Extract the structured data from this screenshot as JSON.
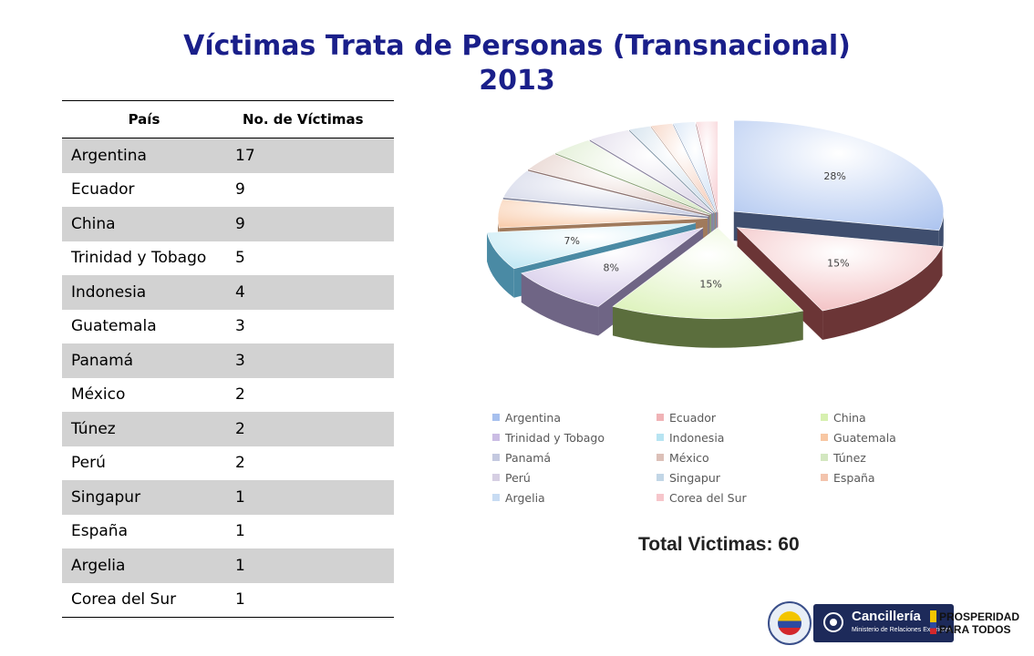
{
  "title": {
    "line1": "Víctimas Trata de Personas (Transnacional)",
    "line2": "2013"
  },
  "table": {
    "headers": [
      "País",
      "No. de Víctimas"
    ],
    "rows": [
      [
        "Argentina",
        "17"
      ],
      [
        "Ecuador",
        "9"
      ],
      [
        "China",
        "9"
      ],
      [
        "Trinidad y Tobago",
        "5"
      ],
      [
        "Indonesia",
        "4"
      ],
      [
        "Guatemala",
        "3"
      ],
      [
        "Panamá",
        "3"
      ],
      [
        "México",
        "2"
      ],
      [
        "Túnez",
        "2"
      ],
      [
        "Perú",
        "2"
      ],
      [
        "Singapur",
        "1"
      ],
      [
        "España",
        "1"
      ],
      [
        "Argelia",
        "1"
      ],
      [
        "Corea del Sur",
        "1"
      ]
    ]
  },
  "chart_data": {
    "type": "pie",
    "style": "3d-exploded",
    "legend_position": "bottom",
    "categories": [
      "Argentina",
      "Ecuador",
      "China",
      "Trinidad y Tobago",
      "Indonesia",
      "Guatemala",
      "Panamá",
      "México",
      "Túnez",
      "Perú",
      "Singapur",
      "España",
      "Argelia",
      "Corea del Sur"
    ],
    "values": [
      17,
      9,
      9,
      5,
      4,
      3,
      3,
      2,
      2,
      2,
      1,
      1,
      1,
      1
    ],
    "data_labels": [
      "28%",
      "15%",
      "15%",
      "8%",
      "7%",
      "",
      "",
      "",
      "",
      "",
      "",
      "",
      "",
      ""
    ],
    "colors": [
      "#a7c0ee",
      "#f0b3b6",
      "#d7f0b0",
      "#cbbde4",
      "#b7e4f2",
      "#f8c7a3",
      "#c4c9e0",
      "#dcc0b8",
      "#d3e7c0",
      "#d6cfe3",
      "#c2d6e6",
      "#f3c4ad",
      "#c8dcf3",
      "#f6c6cb"
    ],
    "side_colors": [
      "#3f4e6e",
      "#6b3536",
      "#5b6e3d",
      "#6f6585",
      "#4a8aa4",
      "#a07a5c",
      "#7b7f98",
      "#8d7370",
      "#8aa276",
      "#8b84a0",
      "#7c92a4",
      "#a57e6d",
      "#7e94b4",
      "#a8757c"
    ]
  },
  "total": {
    "text": "Total Victimas: 60"
  },
  "logos": {
    "cancilleria": "Cancillería",
    "cancilleria_sub": "Ministerio de Relaciones Exteriores",
    "prosperidad_line1": "PROSPERIDAD",
    "prosperidad_line2": "PARA TODOS"
  }
}
